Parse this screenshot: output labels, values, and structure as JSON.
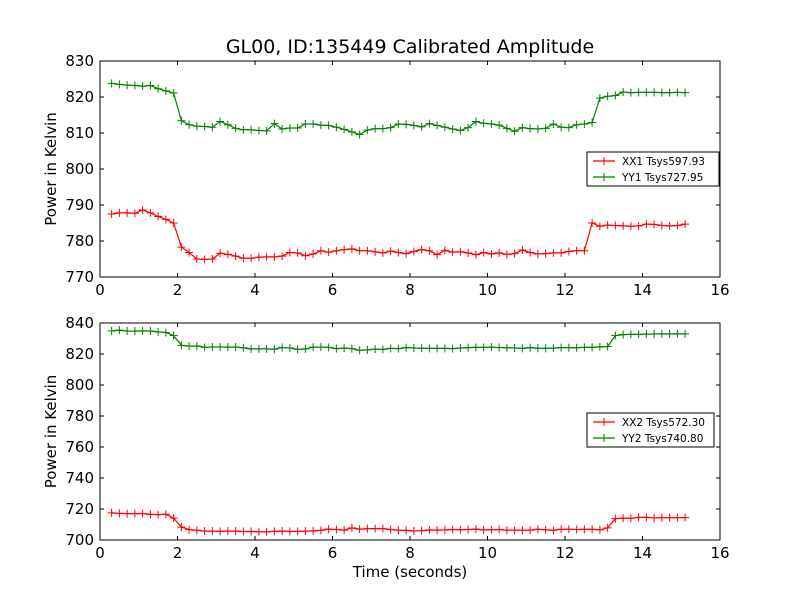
{
  "figure_title": "GL00, ID:135449 Calibrated Amplitude",
  "colors": {
    "xx": "#ff0000",
    "yy": "#008000",
    "axes": "#000000",
    "background": "#ffffff"
  },
  "chart_data": [
    {
      "type": "line",
      "title": "GL00, ID:135449 Calibrated Amplitude",
      "xlabel": "",
      "ylabel": "Power in Kelvin",
      "xlim": [
        0,
        16
      ],
      "ylim": [
        770,
        830
      ],
      "xticks": [
        0,
        2,
        4,
        6,
        8,
        10,
        12,
        14,
        16
      ],
      "yticks": [
        770,
        780,
        790,
        800,
        810,
        820,
        830
      ],
      "grid": false,
      "legend": "center-right",
      "marker": "+",
      "x": [
        0.3,
        0.5,
        0.7,
        0.9,
        1.1,
        1.3,
        1.5,
        1.7,
        1.9,
        2.1,
        2.3,
        2.5,
        2.7,
        2.9,
        3.1,
        3.3,
        3.5,
        3.7,
        3.9,
        4.1,
        4.3,
        4.5,
        4.7,
        4.9,
        5.1,
        5.3,
        5.5,
        5.7,
        5.9,
        6.1,
        6.3,
        6.5,
        6.7,
        6.9,
        7.1,
        7.3,
        7.5,
        7.7,
        7.9,
        8.1,
        8.3,
        8.5,
        8.7,
        8.9,
        9.1,
        9.3,
        9.5,
        9.7,
        9.9,
        10.1,
        10.3,
        10.5,
        10.7,
        10.9,
        11.1,
        11.3,
        11.5,
        11.7,
        11.9,
        12.1,
        12.3,
        12.5,
        12.7,
        12.9,
        13.1,
        13.3,
        13.5,
        13.7,
        13.9,
        14.1,
        14.3,
        14.5,
        14.7,
        14.9,
        15.1
      ],
      "series": [
        {
          "name": "XX1 Tsys597.93",
          "color": "#ff0000",
          "values": [
            787.5,
            787.8,
            787.8,
            787.7,
            788.6,
            787.8,
            786.8,
            786.0,
            785.0,
            778.3,
            776.8,
            775.0,
            774.9,
            775.0,
            776.6,
            776.3,
            775.8,
            775.2,
            775.2,
            775.5,
            775.6,
            775.6,
            775.8,
            776.8,
            776.7,
            775.9,
            776.4,
            777.3,
            776.9,
            777.3,
            777.6,
            777.8,
            777.3,
            777.3,
            777.0,
            776.7,
            777.2,
            776.8,
            776.5,
            777.1,
            777.6,
            777.3,
            776.2,
            777.4,
            776.9,
            777.0,
            776.7,
            776.2,
            776.8,
            776.4,
            776.7,
            776.3,
            776.5,
            777.5,
            776.8,
            776.4,
            776.5,
            776.7,
            776.7,
            777.1,
            777.3,
            777.3,
            785.0,
            784.1,
            784.4,
            784.3,
            784.2,
            784.1,
            784.2,
            784.7,
            784.6,
            784.3,
            784.2,
            784.3,
            784.7
          ]
        },
        {
          "name": "YY1 Tsys727.95",
          "color": "#008000",
          "values": [
            823.8,
            823.5,
            823.3,
            823.2,
            823.0,
            823.2,
            822.3,
            821.7,
            821.1,
            813.4,
            812.3,
            811.9,
            811.8,
            811.6,
            813.2,
            812.3,
            811.3,
            810.9,
            810.9,
            810.7,
            810.6,
            812.6,
            811.1,
            811.4,
            811.4,
            812.5,
            812.5,
            812.2,
            812.1,
            811.6,
            811.0,
            810.3,
            809.6,
            810.8,
            811.2,
            811.2,
            811.5,
            812.5,
            812.4,
            812.1,
            811.7,
            812.6,
            812.1,
            811.6,
            811.1,
            810.7,
            811.5,
            813.2,
            812.7,
            812.5,
            812.2,
            811.3,
            810.5,
            811.5,
            811.2,
            811.1,
            811.3,
            812.5,
            811.6,
            811.5,
            812.3,
            812.5,
            812.9,
            819.7,
            820.2,
            820.4,
            821.4,
            821.2,
            821.3,
            821.3,
            821.3,
            821.2,
            821.2,
            821.3,
            821.2
          ]
        }
      ]
    },
    {
      "type": "line",
      "title": "",
      "xlabel": "Time (seconds)",
      "ylabel": "Power in Kelvin",
      "xlim": [
        0,
        16
      ],
      "ylim": [
        700,
        840
      ],
      "xticks": [
        0,
        2,
        4,
        6,
        8,
        10,
        12,
        14,
        16
      ],
      "yticks": [
        700,
        720,
        740,
        760,
        780,
        800,
        820,
        840
      ],
      "grid": false,
      "legend": "center-right",
      "marker": "+",
      "x": [
        0.3,
        0.5,
        0.7,
        0.9,
        1.1,
        1.3,
        1.5,
        1.7,
        1.9,
        2.1,
        2.3,
        2.5,
        2.7,
        2.9,
        3.1,
        3.3,
        3.5,
        3.7,
        3.9,
        4.1,
        4.3,
        4.5,
        4.7,
        4.9,
        5.1,
        5.3,
        5.5,
        5.7,
        5.9,
        6.1,
        6.3,
        6.5,
        6.7,
        6.9,
        7.1,
        7.3,
        7.5,
        7.7,
        7.9,
        8.1,
        8.3,
        8.5,
        8.7,
        8.9,
        9.1,
        9.3,
        9.5,
        9.7,
        9.9,
        10.1,
        10.3,
        10.5,
        10.7,
        10.9,
        11.1,
        11.3,
        11.5,
        11.7,
        11.9,
        12.1,
        12.3,
        12.5,
        12.7,
        12.9,
        13.1,
        13.3,
        13.5,
        13.7,
        13.9,
        14.1,
        14.3,
        14.5,
        14.7,
        14.9,
        15.1
      ],
      "series": [
        {
          "name": "XX2 Tsys572.30",
          "color": "#ff0000",
          "values": [
            717.5,
            717.2,
            717.0,
            717.0,
            717.1,
            716.5,
            716.4,
            716.6,
            714.1,
            708.3,
            706.7,
            706.3,
            705.7,
            705.7,
            705.6,
            705.7,
            705.7,
            705.5,
            705.5,
            705.3,
            705.3,
            705.6,
            705.7,
            705.5,
            705.6,
            705.7,
            705.9,
            706.2,
            707.0,
            706.8,
            706.4,
            707.8,
            707.0,
            707.3,
            707.3,
            707.3,
            706.8,
            706.3,
            706.2,
            705.8,
            706.0,
            706.5,
            706.4,
            706.5,
            706.8,
            706.6,
            706.8,
            707.0,
            706.5,
            706.6,
            706.8,
            706.3,
            706.4,
            706.3,
            706.3,
            706.9,
            706.6,
            706.2,
            706.9,
            706.9,
            706.8,
            706.9,
            706.9,
            706.6,
            707.8,
            713.8,
            714.1,
            714.0,
            714.6,
            714.6,
            714.2,
            714.4,
            714.4,
            714.4,
            714.4
          ]
        },
        {
          "name": "YY2 Tsys740.80",
          "color": "#008000",
          "values": [
            834.9,
            835.4,
            834.8,
            834.8,
            834.9,
            834.8,
            834.3,
            833.9,
            831.9,
            825.6,
            825.1,
            825.2,
            824.3,
            824.5,
            824.5,
            824.4,
            824.5,
            824.0,
            823.3,
            823.3,
            823.3,
            823.1,
            824.2,
            823.9,
            823.0,
            823.3,
            824.4,
            824.4,
            824.3,
            823.5,
            823.8,
            823.5,
            822.4,
            822.7,
            823.2,
            823.0,
            823.6,
            823.5,
            824.1,
            823.9,
            823.7,
            823.6,
            823.6,
            823.6,
            823.5,
            823.9,
            824.1,
            824.3,
            824.3,
            824.4,
            824.2,
            824.0,
            823.9,
            823.6,
            824.1,
            823.7,
            823.6,
            823.8,
            824.1,
            824.1,
            824.0,
            824.3,
            824.3,
            824.6,
            824.8,
            831.9,
            832.5,
            832.7,
            832.7,
            832.8,
            832.9,
            833.0,
            833.0,
            833.0,
            833.0
          ]
        }
      ]
    }
  ]
}
